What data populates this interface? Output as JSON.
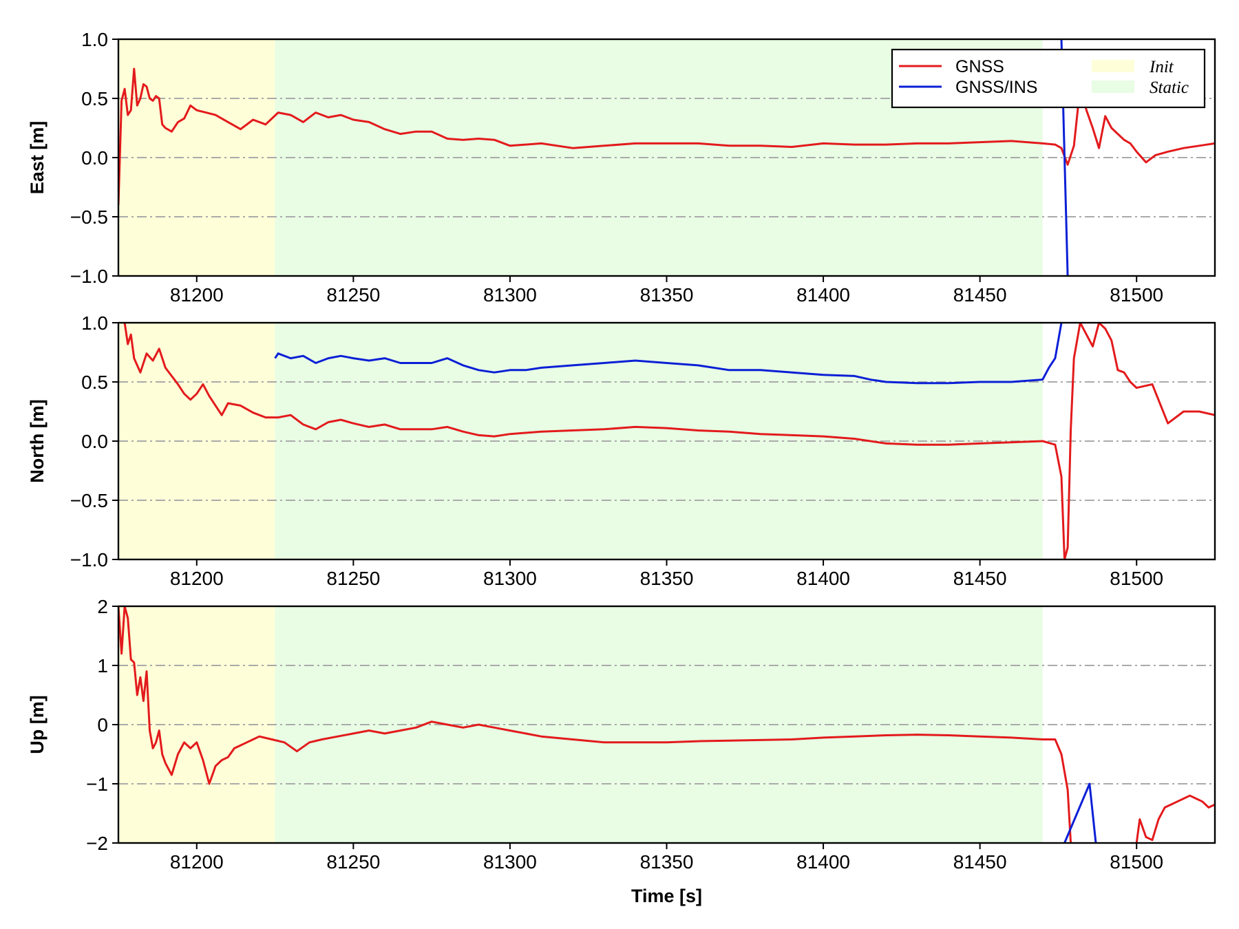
{
  "colors": {
    "gnss": "#e31a1c",
    "gnss_ins": "#0b1fd6",
    "init": "#fefed8",
    "static": "#e8fde4",
    "grid": "#aaaaaa"
  },
  "chart_data": [
    {
      "type": "line",
      "ylabel": "East [m]",
      "xlabel": "",
      "xlim": [
        81175,
        81525
      ],
      "ylim": [
        -1.0,
        1.0
      ],
      "xticks": [
        81200,
        81250,
        81300,
        81350,
        81400,
        81450,
        81500
      ],
      "xtick_labels": [
        "81200",
        "81250",
        "81300",
        "81350",
        "81400",
        "81450",
        "81500"
      ],
      "yticks": [
        1.0,
        0.5,
        0.0,
        -0.5,
        -1.0
      ],
      "ytick_labels": [
        "1.0",
        "0.5",
        "0.0",
        "−0.5",
        "−1.0"
      ],
      "grid": "horizontal dash-dot",
      "shaded_regions": [
        {
          "name": "Init",
          "x": [
            81175,
            81225
          ]
        },
        {
          "name": "Static",
          "x": [
            81225,
            81470
          ]
        }
      ],
      "legend": {
        "placement": "top-right",
        "entries": [
          "GNSS",
          "GNSS/INS",
          "Init",
          "Static"
        ]
      },
      "series": [
        {
          "name": "GNSS",
          "x": [
            81175,
            81176,
            81177,
            81178,
            81179,
            81180,
            81181,
            81182,
            81183,
            81184,
            81185,
            81186,
            81187,
            81188,
            81189,
            81190,
            81192,
            81194,
            81196,
            81198,
            81200,
            81203,
            81206,
            81210,
            81214,
            81218,
            81222,
            81226,
            81230,
            81234,
            81238,
            81242,
            81246,
            81250,
            81255,
            81260,
            81265,
            81270,
            81275,
            81280,
            81285,
            81290,
            81295,
            81300,
            81310,
            81320,
            81330,
            81340,
            81350,
            81360,
            81370,
            81380,
            81390,
            81400,
            81410,
            81420,
            81430,
            81440,
            81450,
            81460,
            81470,
            81474,
            81476,
            81478,
            81480,
            81482,
            81484,
            81486,
            81488,
            81490,
            81492,
            81494,
            81496,
            81498,
            81500,
            81503,
            81506,
            81510,
            81515,
            81520,
            81525
          ],
          "values": [
            -0.4,
            0.48,
            0.58,
            0.36,
            0.4,
            0.75,
            0.44,
            0.5,
            0.62,
            0.6,
            0.5,
            0.48,
            0.52,
            0.5,
            0.28,
            0.25,
            0.22,
            0.3,
            0.33,
            0.44,
            0.4,
            0.38,
            0.36,
            0.3,
            0.24,
            0.32,
            0.28,
            0.38,
            0.36,
            0.3,
            0.38,
            0.34,
            0.36,
            0.32,
            0.3,
            0.24,
            0.2,
            0.22,
            0.22,
            0.16,
            0.15,
            0.16,
            0.15,
            0.1,
            0.12,
            0.08,
            0.1,
            0.12,
            0.12,
            0.12,
            0.1,
            0.1,
            0.09,
            0.12,
            0.11,
            0.11,
            0.12,
            0.12,
            0.13,
            0.14,
            0.12,
            0.11,
            0.08,
            -0.06,
            0.1,
            0.6,
            0.4,
            0.25,
            0.08,
            0.35,
            0.25,
            0.2,
            0.15,
            0.12,
            0.05,
            -0.04,
            0.02,
            0.05,
            0.08,
            0.1,
            0.12
          ]
        },
        {
          "name": "GNSS/INS",
          "x": [
            81476,
            81478
          ],
          "values": [
            1.0,
            -1.0
          ]
        }
      ]
    },
    {
      "type": "line",
      "ylabel": "North [m]",
      "xlabel": "",
      "xlim": [
        81175,
        81525
      ],
      "ylim": [
        -1.0,
        1.0
      ],
      "xticks": [
        81200,
        81250,
        81300,
        81350,
        81400,
        81450,
        81500
      ],
      "xtick_labels": [
        "81200",
        "81250",
        "81300",
        "81350",
        "81400",
        "81450",
        "81500"
      ],
      "yticks": [
        1.0,
        0.5,
        0.0,
        -0.5,
        -1.0
      ],
      "ytick_labels": [
        "1.0",
        "0.5",
        "0.0",
        "−0.5",
        "−1.0"
      ],
      "grid": "horizontal dash-dot",
      "shaded_regions": [
        {
          "name": "Init",
          "x": [
            81175,
            81225
          ]
        },
        {
          "name": "Static",
          "x": [
            81225,
            81470
          ]
        }
      ],
      "series": [
        {
          "name": "GNSS",
          "x": [
            81177,
            81178,
            81179,
            81180,
            81182,
            81184,
            81186,
            81188,
            81190,
            81192,
            81194,
            81196,
            81198,
            81200,
            81202,
            81204,
            81206,
            81208,
            81210,
            81214,
            81218,
            81222,
            81226,
            81230,
            81234,
            81238,
            81242,
            81246,
            81250,
            81255,
            81260,
            81265,
            81270,
            81275,
            81280,
            81285,
            81290,
            81295,
            81300,
            81310,
            81320,
            81330,
            81340,
            81350,
            81360,
            81370,
            81380,
            81390,
            81400,
            81410,
            81420,
            81430,
            81440,
            81450,
            81460,
            81470,
            81474,
            81476,
            81477,
            81478,
            81479,
            81480,
            81482,
            81484,
            81486,
            81488,
            81490,
            81492,
            81494,
            81496,
            81498,
            81500,
            81505,
            81510,
            81515,
            81520,
            81525
          ],
          "values": [
            1.0,
            0.82,
            0.9,
            0.7,
            0.58,
            0.74,
            0.68,
            0.78,
            0.62,
            0.55,
            0.48,
            0.4,
            0.35,
            0.4,
            0.48,
            0.38,
            0.3,
            0.22,
            0.32,
            0.3,
            0.24,
            0.2,
            0.2,
            0.22,
            0.14,
            0.1,
            0.16,
            0.18,
            0.15,
            0.12,
            0.14,
            0.1,
            0.1,
            0.1,
            0.12,
            0.08,
            0.05,
            0.04,
            0.06,
            0.08,
            0.09,
            0.1,
            0.12,
            0.11,
            0.09,
            0.08,
            0.06,
            0.05,
            0.04,
            0.02,
            -0.02,
            -0.03,
            -0.03,
            -0.02,
            -0.01,
            0.0,
            -0.03,
            -0.3,
            -1.0,
            -0.9,
            0.1,
            0.7,
            1.0,
            0.9,
            0.8,
            1.0,
            0.95,
            0.85,
            0.6,
            0.58,
            0.5,
            0.45,
            0.48,
            0.15,
            0.25,
            0.25,
            0.22
          ]
        },
        {
          "name": "GNSS/INS",
          "x": [
            81225,
            81226,
            81230,
            81234,
            81238,
            81242,
            81246,
            81250,
            81255,
            81260,
            81265,
            81270,
            81275,
            81280,
            81285,
            81290,
            81295,
            81300,
            81305,
            81310,
            81320,
            81330,
            81340,
            81350,
            81360,
            81370,
            81380,
            81390,
            81400,
            81410,
            81415,
            81420,
            81430,
            81440,
            81450,
            81460,
            81470,
            81472,
            81474,
            81476
          ],
          "values": [
            0.7,
            0.74,
            0.7,
            0.72,
            0.66,
            0.7,
            0.72,
            0.7,
            0.68,
            0.7,
            0.66,
            0.66,
            0.66,
            0.7,
            0.64,
            0.6,
            0.58,
            0.6,
            0.6,
            0.62,
            0.64,
            0.66,
            0.68,
            0.66,
            0.64,
            0.6,
            0.6,
            0.58,
            0.56,
            0.55,
            0.52,
            0.5,
            0.49,
            0.49,
            0.5,
            0.5,
            0.52,
            0.62,
            0.7,
            1.0
          ]
        }
      ]
    },
    {
      "type": "line",
      "ylabel": "Up [m]",
      "xlabel": "Time [s]",
      "xlim": [
        81175,
        81525
      ],
      "ylim": [
        -2,
        2
      ],
      "xticks": [
        81200,
        81250,
        81300,
        81350,
        81400,
        81450,
        81500
      ],
      "xtick_labels": [
        "81200",
        "81250",
        "81300",
        "81350",
        "81400",
        "81450",
        "81500"
      ],
      "yticks": [
        2,
        1,
        0,
        -1,
        -2
      ],
      "ytick_labels": [
        "2",
        "1",
        "0",
        "−1",
        "−2"
      ],
      "grid": "horizontal dash-dot",
      "shaded_regions": [
        {
          "name": "Init",
          "x": [
            81175,
            81225
          ]
        },
        {
          "name": "Static",
          "x": [
            81225,
            81470
          ]
        }
      ],
      "series": [
        {
          "name": "GNSS",
          "x": [
            81175,
            81176,
            81177,
            81178,
            81179,
            81180,
            81181,
            81182,
            81183,
            81184,
            81185,
            81186,
            81187,
            81188,
            81189,
            81190,
            81192,
            81194,
            81196,
            81198,
            81200,
            81202,
            81204,
            81206,
            81208,
            81210,
            81212,
            81214,
            81216,
            81218,
            81220,
            81224,
            81228,
            81232,
            81236,
            81240,
            81245,
            81250,
            81255,
            81260,
            81265,
            81270,
            81275,
            81280,
            81285,
            81290,
            81295,
            81300,
            81310,
            81320,
            81330,
            81340,
            81350,
            81360,
            81370,
            81380,
            81390,
            81400,
            81410,
            81420,
            81430,
            81440,
            81450,
            81460,
            81470,
            81474,
            81476,
            81478,
            81479
          ],
          "values": [
            2.0,
            1.2,
            2.0,
            1.8,
            1.1,
            1.05,
            0.5,
            0.8,
            0.4,
            0.9,
            -0.1,
            -0.4,
            -0.3,
            -0.1,
            -0.5,
            -0.65,
            -0.85,
            -0.5,
            -0.3,
            -0.4,
            -0.3,
            -0.6,
            -1.0,
            -0.7,
            -0.6,
            -0.55,
            -0.4,
            -0.35,
            -0.3,
            -0.25,
            -0.2,
            -0.25,
            -0.3,
            -0.45,
            -0.3,
            -0.25,
            -0.2,
            -0.15,
            -0.1,
            -0.15,
            -0.1,
            -0.05,
            0.05,
            0.0,
            -0.05,
            0.0,
            -0.05,
            -0.1,
            -0.2,
            -0.25,
            -0.3,
            -0.3,
            -0.3,
            -0.28,
            -0.27,
            -0.26,
            -0.25,
            -0.22,
            -0.2,
            -0.18,
            -0.17,
            -0.18,
            -0.2,
            -0.22,
            -0.25,
            -0.25,
            -0.5,
            -1.1,
            -2.0
          ]
        },
        {
          "name": "GNSS",
          "x": [
            81500,
            81501,
            81503,
            81505,
            81507,
            81509,
            81511,
            81513,
            81515,
            81517,
            81519,
            81521,
            81523,
            81525
          ],
          "values": [
            -2.0,
            -1.6,
            -1.9,
            -1.95,
            -1.6,
            -1.4,
            -1.35,
            -1.3,
            -1.25,
            -1.2,
            -1.25,
            -1.3,
            -1.4,
            -1.35
          ]
        },
        {
          "name": "GNSS/INS",
          "x": [
            81477,
            81481,
            81485,
            81487
          ],
          "values": [
            -2.0,
            -1.5,
            -1.0,
            -2.0
          ]
        }
      ]
    }
  ]
}
